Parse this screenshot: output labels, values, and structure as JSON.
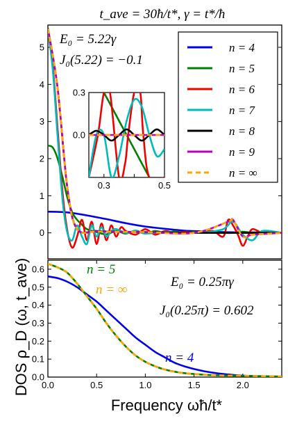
{
  "figure": {
    "title": "t_ave = 30ħ/t*, γ = t*/ħ",
    "xlabel": "Frequency ωħ/t*",
    "ylabel": "DOS ρ_D (ω, t_ave)"
  },
  "top_panel": {
    "annotation_line1": "E₀ = 5.22γ",
    "annotation_line2": "J₀(5.22) = −0.1",
    "legend": [
      "n = 4",
      "n = 5",
      "n = 6",
      "n = 7",
      "n = 8",
      "n = 9",
      "n = ∞"
    ]
  },
  "bottom_panel": {
    "annotation_line1": "E₀ = 0.25πγ",
    "annotation_line2": "J₀(0.25π) = 0.602",
    "label_n5": "n = 5",
    "label_ninf": "n = ∞",
    "label_n4": "n = 4"
  },
  "chart_data": [
    {
      "type": "line",
      "title": "t_ave = 30ħ/t*, γ = t*/ħ",
      "xlabel": "",
      "ylabel": "DOS ρ_D (ω, t_ave)",
      "xlim": [
        0,
        2.4
      ],
      "ylim": [
        -0.7,
        5.6
      ],
      "xticks": [],
      "yticks": [
        0,
        1,
        2,
        3,
        4,
        5
      ],
      "legend_position": "top-right",
      "series": [
        {
          "name": "n = 4",
          "color": "#0000ee",
          "x": [
            0,
            0.2,
            0.4,
            0.6,
            0.8,
            1.0,
            1.2,
            1.4,
            1.6,
            1.8,
            2.0,
            2.2,
            2.4
          ],
          "y": [
            0.57,
            0.55,
            0.47,
            0.37,
            0.26,
            0.17,
            0.11,
            0.06,
            0.04,
            0.02,
            0.01,
            0.01,
            0.0
          ]
        },
        {
          "name": "n = 5",
          "color": "#008000",
          "x": [
            0,
            0.05,
            0.1,
            0.15,
            0.2,
            0.25,
            0.3,
            0.35,
            0.4,
            0.5,
            0.6,
            0.7,
            0.8,
            0.9,
            1.0,
            1.1,
            1.2,
            1.3,
            1.4,
            1.5,
            1.6,
            1.7,
            1.8,
            1.9,
            2.0,
            2.1,
            2.2,
            2.3,
            2.4
          ],
          "y": [
            2.35,
            2.3,
            2.0,
            1.5,
            0.95,
            0.55,
            0.35,
            0.22,
            0.1,
            0.02,
            -0.04,
            0.05,
            -0.02,
            0.06,
            -0.02,
            0.05,
            0.0,
            0.04,
            0.0,
            0.02,
            0.0,
            0.02,
            0.0,
            0.0,
            0.03,
            0.0,
            0.02,
            0.01,
            0.0
          ]
        },
        {
          "name": "n = 6",
          "color": "#ee0000",
          "x": [
            0,
            0.05,
            0.1,
            0.15,
            0.2,
            0.25,
            0.3,
            0.35,
            0.4,
            0.45,
            0.5,
            0.55,
            0.6,
            0.65,
            0.7,
            0.75,
            0.8,
            0.9,
            1.0,
            1.1,
            1.2,
            1.3,
            1.4,
            1.5,
            1.6,
            1.7,
            1.8,
            1.85,
            1.9,
            1.95,
            2.0,
            2.05,
            2.1,
            2.2,
            2.3,
            2.4
          ],
          "y": [
            5.45,
            4.5,
            2.8,
            1.1,
            0.05,
            -0.4,
            -0.1,
            0.35,
            -0.2,
            0.3,
            -0.3,
            0.25,
            -0.2,
            0.2,
            -0.1,
            0.15,
            0.05,
            -0.05,
            0.1,
            -0.05,
            0.05,
            0.0,
            0.03,
            0.0,
            0.02,
            0.05,
            -0.1,
            0.35,
            0.2,
            -0.05,
            -0.35,
            -0.1,
            0.1,
            0.0,
            0.03,
            0.0
          ]
        },
        {
          "name": "n = 7",
          "color": "#00bbbb",
          "x": [
            0,
            0.05,
            0.1,
            0.15,
            0.2,
            0.25,
            0.3,
            0.35,
            0.4,
            0.45,
            0.5,
            0.55,
            0.6,
            0.65,
            0.7,
            0.8,
            0.9,
            1.0,
            1.2,
            1.4,
            1.6,
            1.8,
            1.9,
            2.0,
            2.1,
            2.2,
            2.4
          ],
          "y": [
            5.5,
            4.4,
            2.6,
            0.9,
            0.0,
            -0.2,
            0.2,
            -0.1,
            -0.3,
            0.2,
            -0.1,
            0.15,
            -0.1,
            0.05,
            0.1,
            0.0,
            0.05,
            -0.02,
            0.02,
            0.0,
            0.01,
            0.1,
            0.3,
            -0.05,
            -0.2,
            0.05,
            0.0
          ]
        },
        {
          "name": "n = 8",
          "color": "#000000",
          "x": [
            0,
            0.1,
            0.2,
            0.3,
            0.5,
            0.7,
            1.0,
            1.5,
            2.0,
            2.4
          ],
          "y": [
            5.52,
            3.9,
            1.2,
            0.1,
            0.05,
            0.03,
            0.02,
            0.0,
            0.0,
            0.0
          ]
        },
        {
          "name": "n = 9",
          "color": "#bb00bb",
          "x": [
            0,
            0.1,
            0.2,
            0.3,
            0.5,
            0.7,
            1.0,
            1.5,
            1.85,
            1.9,
            2.0,
            2.1,
            2.4
          ],
          "y": [
            5.5,
            3.9,
            1.2,
            0.1,
            0.04,
            0.03,
            0.02,
            0.0,
            0.3,
            0.35,
            -0.1,
            -0.05,
            0.0
          ]
        },
        {
          "name": "n = ∞",
          "color": "#ffa500",
          "dashed": true,
          "x": [
            0,
            0.1,
            0.2,
            0.3,
            0.5,
            0.7,
            1.0,
            1.5,
            1.85,
            1.9,
            2.0,
            2.1,
            2.4
          ],
          "y": [
            5.5,
            3.9,
            1.2,
            0.1,
            0.04,
            0.03,
            0.02,
            0.0,
            0.3,
            0.35,
            -0.1,
            -0.05,
            0.0
          ]
        }
      ]
    },
    {
      "type": "line",
      "title": "",
      "xlabel": "",
      "ylabel": "",
      "xlim": [
        0.25,
        0.5
      ],
      "ylim": [
        -0.3,
        0.3
      ],
      "xticks": [
        0.3,
        0.4,
        0.5
      ],
      "xtick_labels": [
        "0.3",
        "",
        "0.5"
      ],
      "yticks": [
        -0.3,
        0.0,
        0.3
      ],
      "ytick_labels": [
        "",
        "0.0",
        "0.3"
      ],
      "series": [
        {
          "name": "n = 5",
          "color": "#008000",
          "x": [
            0.3,
            0.325,
            0.35,
            0.375,
            0.4,
            0.425,
            0.45
          ],
          "y": [
            0.3,
            0.2,
            0.1,
            0.0,
            -0.1,
            -0.2,
            -0.3
          ]
        },
        {
          "name": "n = 6",
          "color": "#ee0000",
          "x": [
            0.25,
            0.28,
            0.3,
            0.32,
            0.35,
            0.37,
            0.38,
            0.4,
            0.42,
            0.43,
            0.45,
            0.5
          ],
          "y": [
            -0.3,
            0.0,
            0.3,
            0.3,
            -0.3,
            -0.2,
            0.0,
            0.3,
            0.3,
            0.0,
            -0.3,
            -0.3
          ]
        },
        {
          "name": "n = 7",
          "color": "#00bbbb",
          "x": [
            0.25,
            0.275,
            0.3,
            0.325,
            0.35,
            0.375,
            0.4,
            0.425,
            0.45,
            0.475,
            0.5
          ],
          "y": [
            -0.3,
            0.0,
            0.0,
            -0.3,
            -0.15,
            0.1,
            0.25,
            0.2,
            0.0,
            -0.15,
            -0.1
          ]
        },
        {
          "name": "n = 8",
          "color": "#000000",
          "x": [
            0.25,
            0.275,
            0.3,
            0.325,
            0.35,
            0.375,
            0.4,
            0.425,
            0.45,
            0.475,
            0.5
          ],
          "y": [
            0.0,
            0.03,
            0.0,
            -0.04,
            0.0,
            0.04,
            0.0,
            -0.04,
            0.0,
            0.04,
            0.0
          ]
        },
        {
          "name": "n = 9",
          "color": "#bb00bb",
          "x": [
            0.25,
            0.5
          ],
          "y": [
            0.0,
            0.0
          ]
        },
        {
          "name": "n = ∞",
          "color": "#ffa500",
          "dashed": true,
          "x": [
            0.25,
            0.5
          ],
          "y": [
            0.0,
            0.0
          ]
        }
      ]
    },
    {
      "type": "line",
      "title": "",
      "xlabel": "Frequency ωħ/t*",
      "ylabel": "DOS ρ_D (ω, t_ave)",
      "xlim": [
        0,
        2.4
      ],
      "ylim": [
        0,
        0.65
      ],
      "xticks": [
        0.0,
        0.5,
        1.0,
        1.5,
        2.0
      ],
      "xtick_labels": [
        "0.0",
        "0.5",
        "1.0",
        "1.5",
        "2.0"
      ],
      "yticks": [
        0,
        0.1,
        0.2,
        0.3,
        0.4,
        0.5,
        0.6
      ],
      "ytick_labels": [
        "0.0",
        "0.1",
        "0.2",
        "0.3",
        "0.4",
        "0.5",
        "0.6"
      ],
      "series": [
        {
          "name": "n = 4",
          "color": "#0000ee",
          "x": [
            0,
            0.1,
            0.2,
            0.3,
            0.4,
            0.5,
            0.6,
            0.7,
            0.8,
            0.9,
            1.0,
            1.1,
            1.2,
            1.3,
            1.4,
            1.5,
            1.6,
            1.7,
            1.8,
            1.9,
            2.0,
            2.2,
            2.4
          ],
          "y": [
            0.56,
            0.55,
            0.53,
            0.5,
            0.46,
            0.42,
            0.37,
            0.32,
            0.27,
            0.22,
            0.18,
            0.14,
            0.11,
            0.08,
            0.06,
            0.045,
            0.033,
            0.024,
            0.017,
            0.012,
            0.008,
            0.004,
            0.002
          ]
        },
        {
          "name": "n = 5",
          "color": "#008000",
          "x": [
            0,
            0.1,
            0.2,
            0.3,
            0.4,
            0.5,
            0.6,
            0.7,
            0.8,
            0.9,
            1.0,
            1.1,
            1.2,
            1.3,
            1.4,
            1.5,
            1.6,
            1.7,
            1.8,
            1.9,
            2.0,
            2.2,
            2.4
          ],
          "y": [
            0.63,
            0.61,
            0.58,
            0.52,
            0.45,
            0.38,
            0.3,
            0.23,
            0.17,
            0.12,
            0.085,
            0.06,
            0.042,
            0.03,
            0.022,
            0.017,
            0.013,
            0.011,
            0.009,
            0.008,
            0.007,
            0.005,
            0.003
          ]
        },
        {
          "name": "n = ∞",
          "color": "#ffa500",
          "dashed": true,
          "x": [
            0,
            0.1,
            0.2,
            0.3,
            0.4,
            0.5,
            0.6,
            0.7,
            0.8,
            0.9,
            1.0,
            1.1,
            1.2,
            1.3,
            1.4,
            1.5,
            1.6,
            1.7,
            1.8,
            1.9,
            2.0,
            2.2,
            2.4
          ],
          "y": [
            0.63,
            0.61,
            0.58,
            0.52,
            0.45,
            0.38,
            0.3,
            0.23,
            0.17,
            0.12,
            0.085,
            0.06,
            0.042,
            0.03,
            0.022,
            0.017,
            0.013,
            0.011,
            0.009,
            0.008,
            0.007,
            0.005,
            0.003
          ]
        }
      ]
    }
  ]
}
